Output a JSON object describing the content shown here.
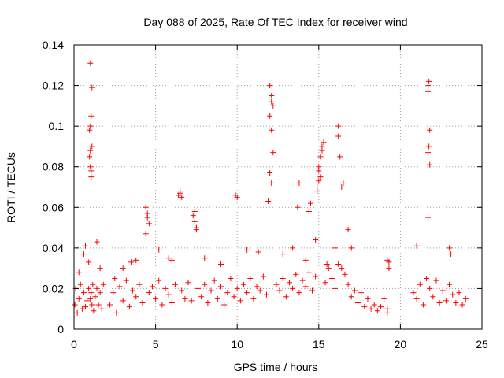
{
  "chart_data": {
    "type": "scatter",
    "title": "Day 088 of 2025, Rate Of TEC Index for receiver wind",
    "xlabel": "GPS time / hours",
    "ylabel": "ROTI / TECUs",
    "xlim": [
      0,
      25
    ],
    "ylim": [
      0,
      0.14
    ],
    "xticks": [
      0,
      5,
      10,
      15,
      20,
      25
    ],
    "xtick_labels": [
      "0",
      "5",
      "10",
      "15",
      "20",
      "25"
    ],
    "yticks": [
      0,
      0.02,
      0.04,
      0.06,
      0.08,
      0.1,
      0.12,
      0.14
    ],
    "ytick_labels": [
      "0",
      "0.02",
      "0.04",
      "0.06",
      "0.08",
      "0.1",
      "0.12",
      "0.14"
    ],
    "grid": true,
    "marker": "+",
    "color": "#ff0000",
    "series": [
      {
        "name": "ROTI",
        "x": [
          0.05,
          0.1,
          0.2,
          0.3,
          0.4,
          0.5,
          0.6,
          0.7,
          0.8,
          0.9,
          1.0,
          1.05,
          1.1,
          1.15,
          1.2,
          1.3,
          1.4,
          1.5,
          1.6,
          1.7,
          1.8,
          0.95,
          1.0,
          1.05,
          1.1,
          1.0,
          0.95,
          1.05,
          1.0,
          1.1,
          1.0,
          1.05,
          0.7,
          0.6,
          1.4,
          2.2,
          2.4,
          2.6,
          2.8,
          3.0,
          3.2,
          3.4,
          3.6,
          3.8,
          4.0,
          4.2,
          4.4,
          4.5,
          4.6,
          4.8,
          5.0,
          5.2,
          5.4,
          5.6,
          5.8,
          6.0,
          6.2,
          6.4,
          6.5,
          6.6,
          6.8,
          7.0,
          7.2,
          7.4,
          7.5,
          7.6,
          7.8,
          8.0,
          8.2,
          8.4,
          8.6,
          8.8,
          9.0,
          9.2,
          9.4,
          9.6,
          9.8,
          10.0,
          10.2,
          10.4,
          10.6,
          10.8,
          11.0,
          11.2,
          11.4,
          11.6,
          11.8,
          12.0,
          12.1,
          12.2,
          12.4,
          12.6,
          12.8,
          13.0,
          13.2,
          13.4,
          13.6,
          13.8,
          14.0,
          14.2,
          14.4,
          14.6,
          14.8,
          15.0,
          15.2,
          15.4,
          15.6,
          15.8,
          16.0,
          16.2,
          16.4,
          16.6,
          16.8,
          17.0,
          17.2,
          17.4,
          17.6,
          17.8,
          18.0,
          18.2,
          18.4,
          18.6,
          18.8,
          19.0,
          19.2,
          19.3,
          19.2,
          20.8,
          21.0,
          21.2,
          21.4,
          21.6,
          21.7,
          21.8,
          22.0,
          22.2,
          22.4,
          22.6,
          22.8,
          23.0,
          23.2,
          23.4,
          23.6,
          23.8,
          24.0,
          12.0,
          12.1,
          12.2,
          12.0,
          12.1,
          11.9,
          12.1,
          14.9,
          15.0,
          15.1,
          15.2,
          15.3,
          14.9,
          15.0,
          15.1,
          16.2,
          16.3,
          16.2,
          16.4,
          13.7,
          13.8,
          14.4,
          14.5,
          10.0,
          9.9,
          7.3,
          7.4,
          7.5,
          6.5,
          6.6,
          4.5,
          4.4,
          4.6,
          21.7,
          21.8,
          21.75,
          21.7,
          21.8,
          21.7,
          21.75,
          23.0,
          23.1,
          21.0,
          3.5,
          5.2,
          19.2,
          19.3,
          17.0,
          16.8,
          16.5,
          16.0,
          15.5,
          14.8,
          14.2,
          13.4,
          12.8,
          11.3,
          10.6,
          9.0,
          8.0,
          6.0,
          5.8,
          3.8,
          3.0,
          2.5,
          0.3,
          0.9,
          1.6
        ],
        "y": [
          0.012,
          0.02,
          0.008,
          0.015,
          0.022,
          0.01,
          0.018,
          0.011,
          0.014,
          0.02,
          0.015,
          0.018,
          0.012,
          0.022,
          0.009,
          0.016,
          0.02,
          0.012,
          0.018,
          0.01,
          0.022,
          0.085,
          0.1,
          0.105,
          0.09,
          0.08,
          0.098,
          0.075,
          0.131,
          0.119,
          0.088,
          0.078,
          0.041,
          0.037,
          0.043,
          0.012,
          0.018,
          0.008,
          0.021,
          0.014,
          0.024,
          0.011,
          0.019,
          0.016,
          0.022,
          0.013,
          0.06,
          0.055,
          0.018,
          0.021,
          0.015,
          0.024,
          0.012,
          0.02,
          0.017,
          0.013,
          0.022,
          0.066,
          0.068,
          0.019,
          0.015,
          0.023,
          0.014,
          0.058,
          0.05,
          0.02,
          0.016,
          0.022,
          0.013,
          0.019,
          0.024,
          0.015,
          0.021,
          0.012,
          0.018,
          0.025,
          0.016,
          0.02,
          0.014,
          0.022,
          0.018,
          0.025,
          0.015,
          0.021,
          0.019,
          0.026,
          0.017,
          0.12,
          0.115,
          0.11,
          0.022,
          0.019,
          0.025,
          0.016,
          0.023,
          0.02,
          0.027,
          0.018,
          0.024,
          0.021,
          0.028,
          0.019,
          0.026,
          0.08,
          0.09,
          0.023,
          0.03,
          0.025,
          0.02,
          0.032,
          0.03,
          0.027,
          0.022,
          0.016,
          0.019,
          0.013,
          0.018,
          0.011,
          0.015,
          0.01,
          0.012,
          0.009,
          0.011,
          0.015,
          0.01,
          0.03,
          0.008,
          0.018,
          0.015,
          0.022,
          0.012,
          0.025,
          0.12,
          0.02,
          0.016,
          0.024,
          0.013,
          0.019,
          0.014,
          0.022,
          0.017,
          0.013,
          0.018,
          0.012,
          0.015,
          0.105,
          0.098,
          0.087,
          0.077,
          0.072,
          0.063,
          0.112,
          0.07,
          0.078,
          0.085,
          0.088,
          0.092,
          0.068,
          0.073,
          0.075,
          0.1,
          0.085,
          0.095,
          0.07,
          0.06,
          0.072,
          0.058,
          0.062,
          0.065,
          0.066,
          0.056,
          0.053,
          0.049,
          0.067,
          0.065,
          0.057,
          0.047,
          0.052,
          0.117,
          0.098,
          0.09,
          0.087,
          0.081,
          0.055,
          0.122,
          0.04,
          0.037,
          0.041,
          0.033,
          0.039,
          0.034,
          0.033,
          0.04,
          0.049,
          0.072,
          0.04,
          0.032,
          0.044,
          0.034,
          0.04,
          0.037,
          0.038,
          0.039,
          0.032,
          0.035,
          0.034,
          0.035,
          0.034,
          0.03,
          0.025,
          0.028,
          0.033,
          0.03
        ]
      }
    ]
  }
}
